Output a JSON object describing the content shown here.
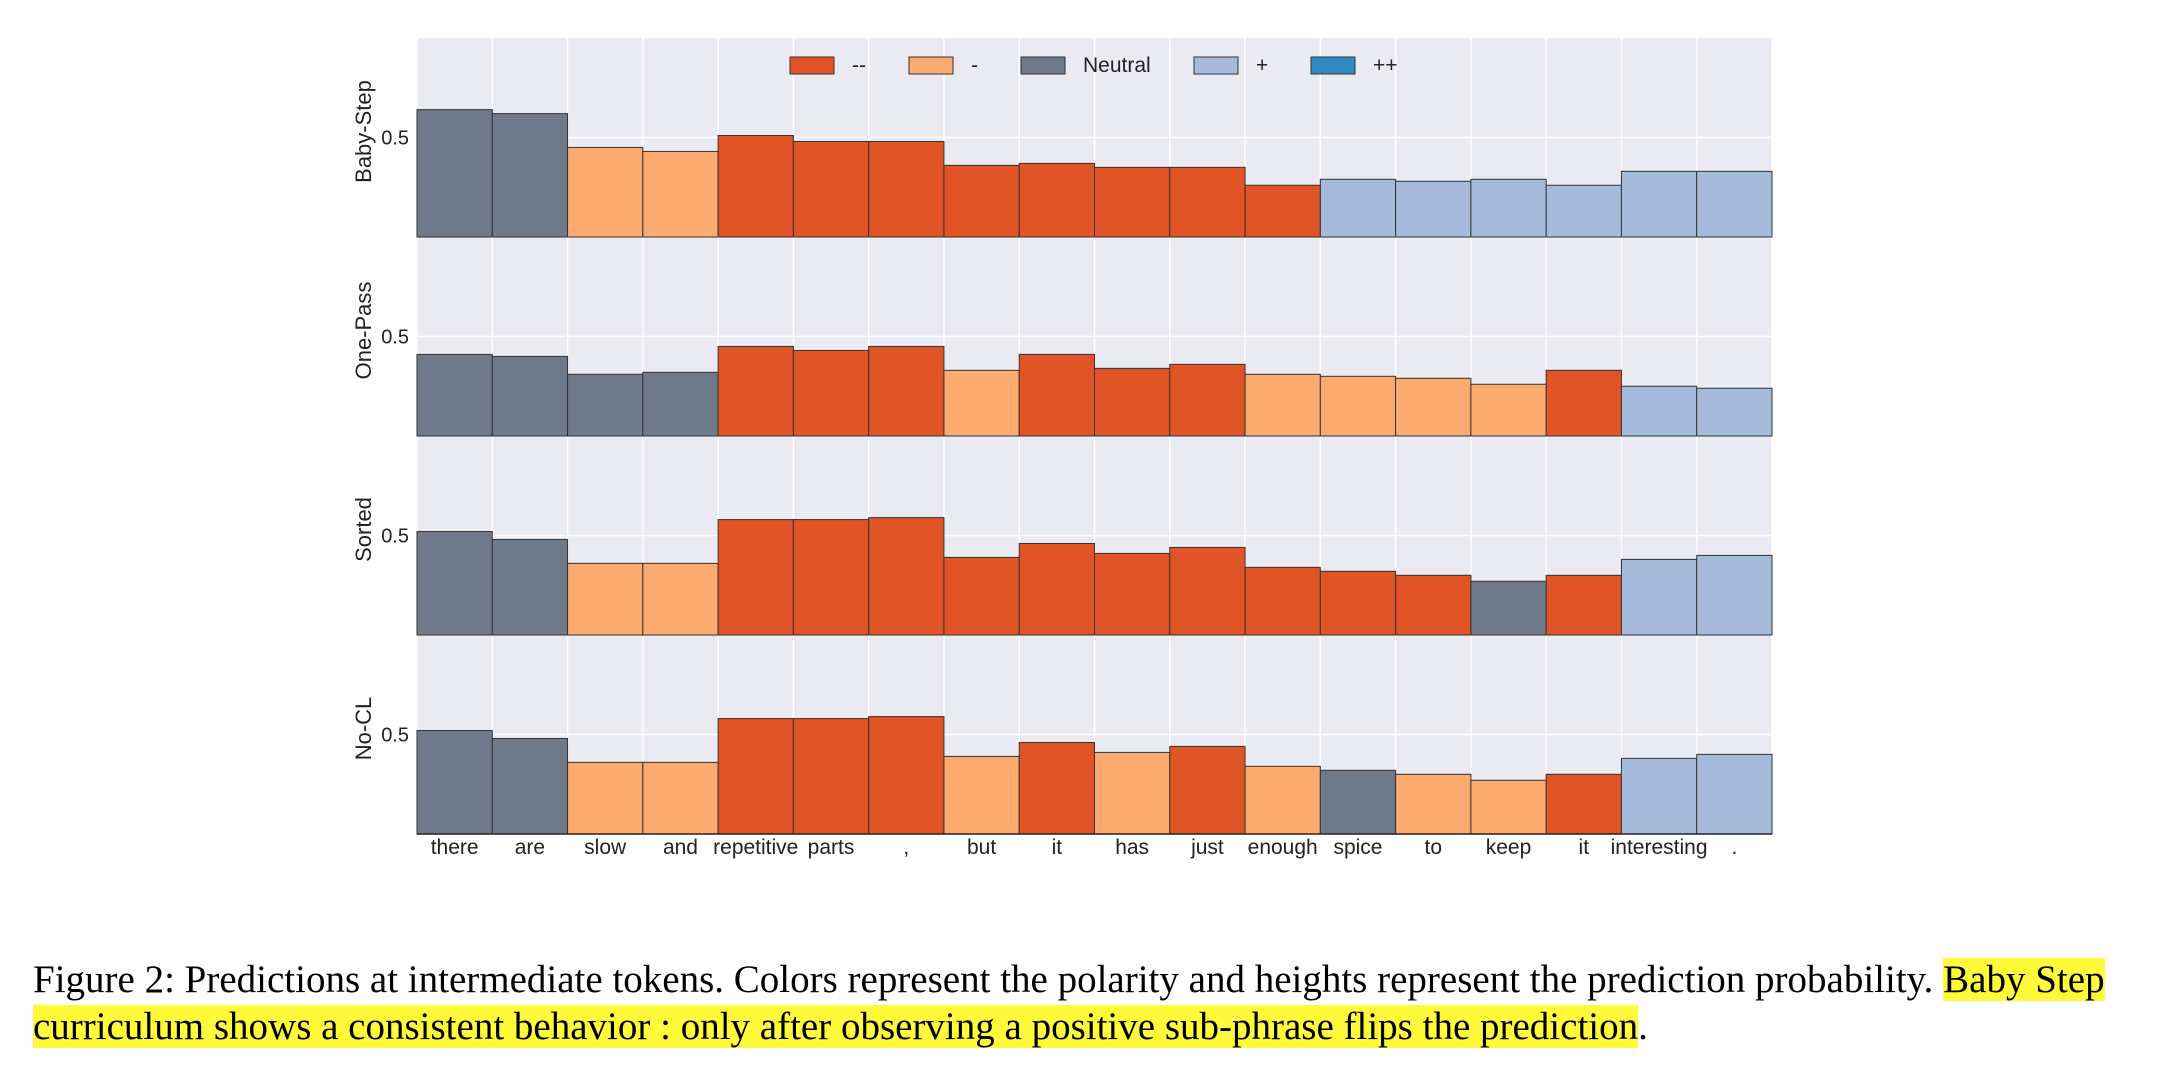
{
  "chart_data": {
    "type": "bar",
    "tokens": [
      "there",
      "are",
      "slow",
      "and",
      "repetitive",
      "parts",
      ",",
      "but",
      "it",
      "has",
      "just",
      "enough",
      "spice",
      "to",
      "keep",
      "it",
      "interesting",
      "."
    ],
    "legend": [
      {
        "key": "--",
        "label": "--",
        "color": "#e15425"
      },
      {
        "key": "-",
        "label": "-",
        "color": "#fbab6f"
      },
      {
        "key": "Neutral",
        "label": "Neutral",
        "color": "#6e7a8a"
      },
      {
        "key": "+",
        "label": "+",
        "color": "#a6bbdb"
      },
      {
        "key": "++",
        "label": "++",
        "color": "#2e8bc0"
      }
    ],
    "ytick_label": "0.5",
    "ytick_value": 0.5,
    "grid": true,
    "legend_position": "top-center",
    "panels": [
      {
        "ylabel": "Baby-Step",
        "values": [
          0.64,
          0.62,
          0.45,
          0.43,
          0.51,
          0.48,
          0.48,
          0.36,
          0.37,
          0.35,
          0.35,
          0.26,
          0.29,
          0.28,
          0.29,
          0.26,
          0.33,
          0.33
        ],
        "polarity": [
          "Neutral",
          "Neutral",
          "-",
          "-",
          "--",
          "--",
          "--",
          "--",
          "--",
          "--",
          "--",
          "--",
          "+",
          "+",
          "+",
          "+",
          "+",
          "+"
        ]
      },
      {
        "ylabel": "One-Pass",
        "values": [
          0.41,
          0.4,
          0.31,
          0.32,
          0.45,
          0.43,
          0.45,
          0.33,
          0.41,
          0.34,
          0.36,
          0.31,
          0.3,
          0.29,
          0.26,
          0.33,
          0.25,
          0.24
        ],
        "polarity": [
          "Neutral",
          "Neutral",
          "Neutral",
          "Neutral",
          "--",
          "--",
          "--",
          "-",
          "--",
          "--",
          "--",
          "-",
          "-",
          "-",
          "-",
          "--",
          "+",
          "+"
        ]
      },
      {
        "ylabel": "Sorted",
        "values": [
          0.52,
          0.48,
          0.36,
          0.36,
          0.58,
          0.58,
          0.59,
          0.39,
          0.46,
          0.41,
          0.44,
          0.34,
          0.32,
          0.3,
          0.27,
          0.3,
          0.38,
          0.4
        ],
        "polarity": [
          "Neutral",
          "Neutral",
          "-",
          "-",
          "--",
          "--",
          "--",
          "--",
          "--",
          "--",
          "--",
          "--",
          "--",
          "--",
          "Neutral",
          "--",
          "+",
          "+"
        ]
      },
      {
        "ylabel": "No-CL",
        "values": [
          0.52,
          0.48,
          0.36,
          0.36,
          0.58,
          0.58,
          0.59,
          0.39,
          0.46,
          0.41,
          0.44,
          0.34,
          0.32,
          0.3,
          0.27,
          0.3,
          0.38,
          0.4
        ],
        "polarity": [
          "Neutral",
          "Neutral",
          "-",
          "-",
          "--",
          "--",
          "--",
          "-",
          "--",
          "-",
          "--",
          "-",
          "Neutral",
          "-",
          "-",
          "--",
          "+",
          "+"
        ]
      }
    ],
    "ylim": [
      0,
      1
    ]
  },
  "caption": {
    "plain": "Figure 2: Predictions at intermediate tokens. Colors represent the polarity and heights represent the prediction probability. ",
    "highlighted": "Baby Step curriculum shows a consistent behavior : only after observing a positive sub-phrase flips the prediction",
    "tail": "."
  }
}
